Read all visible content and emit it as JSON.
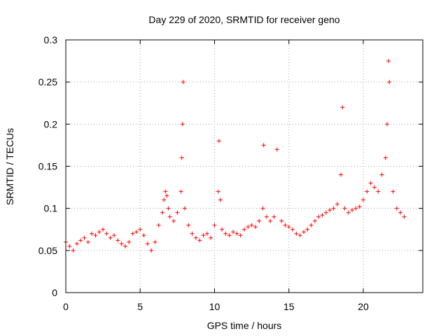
{
  "chart_data": {
    "type": "scatter",
    "title": "Day 229 of 2020, SRMTID for receiver geno",
    "xlabel": "GPS time / hours",
    "ylabel": "SRMTID / TECUs",
    "xlim": [
      0,
      24
    ],
    "ylim": [
      0,
      0.3
    ],
    "x_ticks": [
      0,
      5,
      10,
      15,
      20
    ],
    "x_tick_labels": [
      "0",
      "5",
      "10",
      "15",
      "20"
    ],
    "y_ticks": [
      0,
      0.05,
      0.1,
      0.15,
      0.2,
      0.25,
      0.3
    ],
    "y_tick_labels": [
      "0",
      "0.05",
      "0.1",
      "0.15",
      "0.2",
      "0.25",
      "0.3"
    ],
    "grid": true,
    "marker": "+",
    "series": [
      {
        "name": "SRMTID",
        "color": "#ff0000",
        "x": [
          0.0,
          0.25,
          0.5,
          0.75,
          1.0,
          1.25,
          1.5,
          1.75,
          2.0,
          2.25,
          2.5,
          2.75,
          3.0,
          3.25,
          3.5,
          3.75,
          4.0,
          4.25,
          4.5,
          4.75,
          5.0,
          5.25,
          5.5,
          5.75,
          6.0,
          6.25,
          6.5,
          6.6,
          6.7,
          6.8,
          6.9,
          7.0,
          7.25,
          7.5,
          7.75,
          7.8,
          7.85,
          7.9,
          8.0,
          8.25,
          8.5,
          8.75,
          9.0,
          9.25,
          9.5,
          9.75,
          10.0,
          10.25,
          10.3,
          10.4,
          10.5,
          10.75,
          11.0,
          11.25,
          11.5,
          11.75,
          12.0,
          12.25,
          12.5,
          12.75,
          13.0,
          13.25,
          13.3,
          13.5,
          13.75,
          14.0,
          14.2,
          14.5,
          14.75,
          15.0,
          15.25,
          15.5,
          15.75,
          16.0,
          16.25,
          16.5,
          16.75,
          17.0,
          17.25,
          17.5,
          17.75,
          18.0,
          18.25,
          18.5,
          18.6,
          18.75,
          19.0,
          19.25,
          19.5,
          19.75,
          20.0,
          20.25,
          20.5,
          20.75,
          21.0,
          21.25,
          21.5,
          21.6,
          21.7,
          21.75,
          22.0,
          22.25,
          22.5,
          22.75
        ],
        "y": [
          0.06,
          0.055,
          0.05,
          0.058,
          0.062,
          0.065,
          0.06,
          0.07,
          0.068,
          0.072,
          0.075,
          0.07,
          0.065,
          0.068,
          0.062,
          0.058,
          0.055,
          0.06,
          0.07,
          0.072,
          0.075,
          0.068,
          0.058,
          0.05,
          0.06,
          0.08,
          0.095,
          0.11,
          0.12,
          0.115,
          0.1,
          0.09,
          0.085,
          0.095,
          0.12,
          0.16,
          0.2,
          0.25,
          0.1,
          0.08,
          0.07,
          0.065,
          0.062,
          0.068,
          0.07,
          0.065,
          0.08,
          0.12,
          0.18,
          0.11,
          0.075,
          0.07,
          0.068,
          0.072,
          0.07,
          0.068,
          0.075,
          0.078,
          0.08,
          0.078,
          0.085,
          0.1,
          0.175,
          0.09,
          0.085,
          0.09,
          0.17,
          0.085,
          0.08,
          0.078,
          0.075,
          0.07,
          0.068,
          0.072,
          0.075,
          0.08,
          0.085,
          0.09,
          0.092,
          0.095,
          0.098,
          0.1,
          0.105,
          0.14,
          0.22,
          0.1,
          0.095,
          0.098,
          0.1,
          0.102,
          0.11,
          0.12,
          0.13,
          0.125,
          0.12,
          0.14,
          0.16,
          0.2,
          0.275,
          0.25,
          0.12,
          0.1,
          0.095,
          0.09
        ]
      }
    ]
  }
}
